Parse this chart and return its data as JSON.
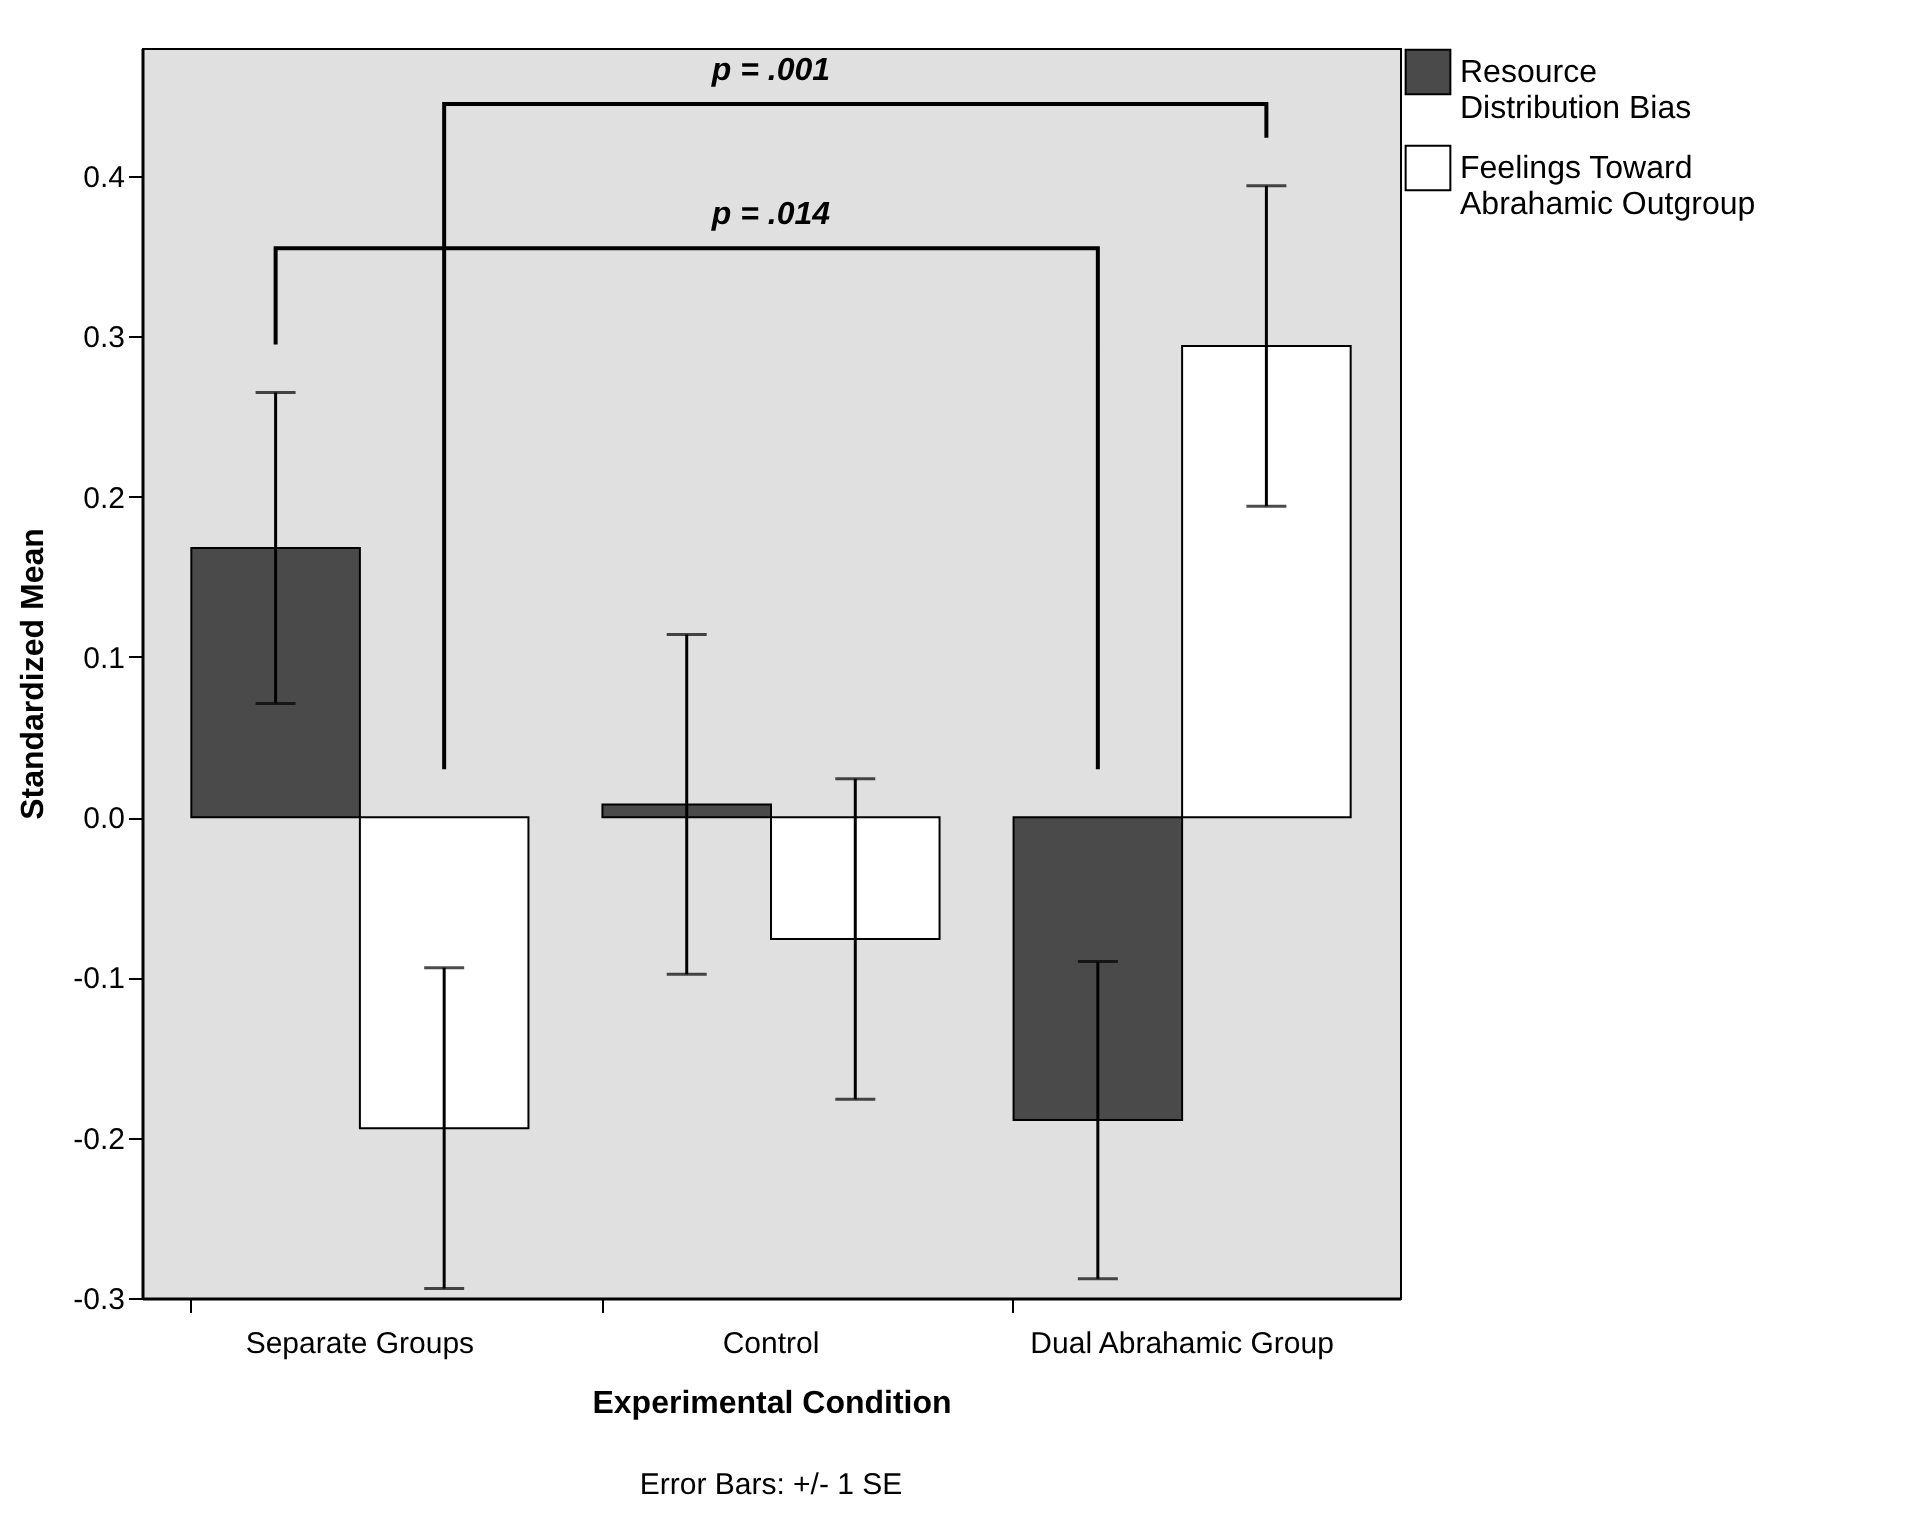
{
  "chart_data": {
    "type": "bar",
    "xlabel": "Experimental Condition",
    "ylabel": "Standardized Mean",
    "categories": [
      "Separate Groups",
      "Control",
      "Dual Abrahamic Group"
    ],
    "series": [
      {
        "name": "Resource Distribution Bias",
        "color": "#4a4a4a",
        "values": [
          0.168,
          0.008,
          -0.189
        ],
        "errors": [
          0.097,
          0.106,
          0.099
        ]
      },
      {
        "name": "Feelings Toward Abrahamic Outgroup",
        "color": "#ffffff",
        "values": [
          -0.194,
          -0.076,
          0.294
        ],
        "errors": [
          0.1,
          0.1,
          0.1
        ]
      }
    ],
    "ylim": [
      -0.3,
      0.48
    ],
    "yticks": [
      -0.3,
      -0.2,
      -0.1,
      {
        "value": 0,
        "label": "0.0"
      },
      0.1,
      0.2,
      0.3,
      0.4
    ],
    "legend": "top right",
    "grid": false,
    "annotations": [
      "p = .001",
      "p = .014",
      "Error Bars: +/- 1 SE"
    ]
  }
}
